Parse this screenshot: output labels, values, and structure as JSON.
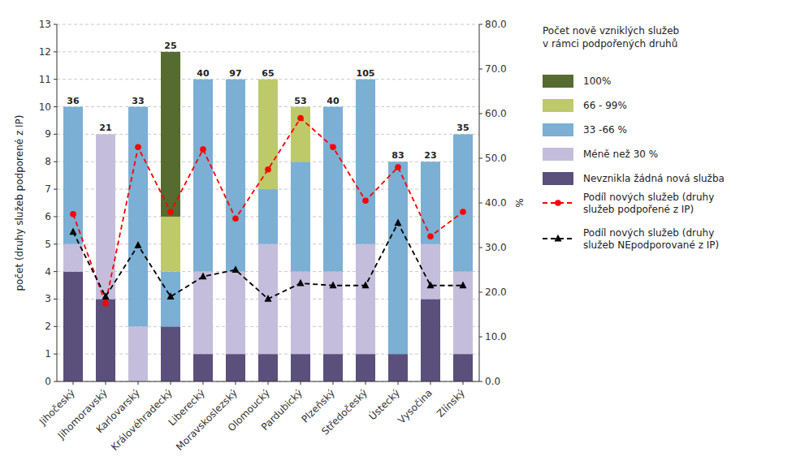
{
  "chart_data": {
    "type": "bar",
    "stacked": true,
    "grid": true,
    "legend": "right",
    "legend_title": "Počet nově vzniklých služeb\nv rámci podpořených druhů",
    "ylabel": "počet (druhy služeb podporené z IP)",
    "y2label": "%",
    "categories": [
      "Jihočeský",
      "Jihomoravský",
      "Karlovarský",
      "Královéhradecký",
      "Liberecký",
      "Moravskoslezský",
      "Olomoucký",
      "Pardubický",
      "Plzeňský",
      "Středočeský",
      "Ústecký",
      "Vysočina",
      "Zlínský"
    ],
    "series": [
      {
        "name": "Nevznikla žádná nová služba",
        "type": "bar",
        "color": "#5B4F7C",
        "values": [
          4,
          3,
          0,
          2,
          1,
          1,
          1,
          1,
          1,
          1,
          1,
          3,
          1
        ]
      },
      {
        "name": "Méně než 30 %",
        "type": "bar",
        "color": "#C4BEDC",
        "values": [
          1,
          6,
          2,
          0,
          3,
          3,
          4,
          3,
          3,
          4,
          0,
          2,
          3
        ]
      },
      {
        "name": "33 -66 %",
        "type": "bar",
        "color": "#7BAFD4",
        "values": [
          5,
          0,
          8,
          2,
          7,
          7,
          2,
          4,
          6,
          6,
          7,
          3,
          5
        ]
      },
      {
        "name": "66 - 99%",
        "type": "bar",
        "color": "#BEC96A",
        "values": [
          0,
          0,
          0,
          2,
          0,
          0,
          4,
          2,
          0,
          0,
          0,
          0,
          0
        ]
      },
      {
        "name": "100%",
        "type": "bar",
        "color": "#556B2F",
        "values": [
          0,
          0,
          0,
          6,
          0,
          0,
          0,
          0,
          0,
          0,
          0,
          0,
          0
        ]
      },
      {
        "name": "Podíl nových služeb (druhy\nslužeb podpořené z IP)",
        "type": "line",
        "axis": "y2",
        "color": "#FF0000",
        "line_style": "dashed",
        "marker": "circle",
        "values": [
          37.5,
          17.5,
          52.5,
          38.0,
          52.0,
          36.5,
          47.5,
          59.0,
          52.5,
          40.5,
          48.0,
          32.5,
          38.0
        ]
      },
      {
        "name": "Podíl nových služeb (druhy\nslužeb NEpodporované z IP)",
        "type": "line",
        "axis": "y2",
        "color": "#000000",
        "line_style": "dashed",
        "marker": "triangle",
        "values": [
          33.5,
          19.0,
          30.5,
          19.0,
          23.5,
          25.0,
          18.5,
          22.0,
          21.5,
          21.5,
          35.5,
          21.5,
          21.5
        ]
      }
    ],
    "annotations": [
      36,
      21,
      33,
      25,
      40,
      97,
      65,
      53,
      40,
      105,
      83,
      23,
      35
    ],
    "ylim": [
      0,
      13
    ],
    "yticks": [
      0,
      1,
      2,
      3,
      4,
      5,
      6,
      7,
      8,
      9,
      10,
      11,
      12,
      13
    ],
    "y2lim": [
      0,
      80.0
    ],
    "y2ticks": [
      {
        "value": 0.0,
        "label": "0.0"
      },
      {
        "value": 10.0,
        "label": "10.0"
      },
      {
        "value": 20.0,
        "label": "20.0"
      },
      {
        "value": 30.0,
        "label": "30.0"
      },
      {
        "value": 40.0,
        "label": "40.0"
      },
      {
        "value": 50.0,
        "label": "50.0"
      },
      {
        "value": 60.0,
        "label": "60.0"
      },
      {
        "value": 70.0,
        "label": "70.0"
      },
      {
        "value": 80.0,
        "label": "80.0"
      }
    ]
  }
}
